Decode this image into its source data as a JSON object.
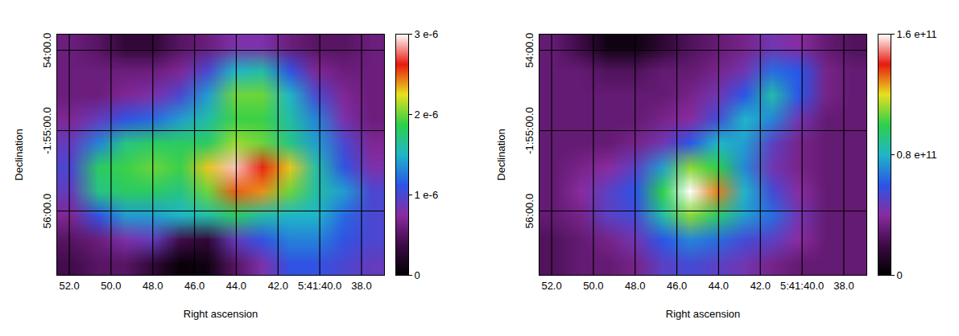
{
  "chart_data": [
    {
      "type": "heatmap",
      "xlabel": "Right ascension",
      "ylabel": "Declination",
      "xlim": [
        52.6,
        36.9
      ],
      "ylim": [
        56.8,
        53.8
      ],
      "xticks": [
        {
          "value": 52,
          "label": "52.0"
        },
        {
          "value": 50,
          "label": "50.0"
        },
        {
          "value": 48,
          "label": "48.0"
        },
        {
          "value": 46,
          "label": "46.0"
        },
        {
          "value": 44,
          "label": "44.0"
        },
        {
          "value": 42,
          "label": "42.0"
        },
        {
          "value": 40,
          "label": "5:41:40.0"
        },
        {
          "value": 38,
          "label": "38.0"
        }
      ],
      "yticks": [
        {
          "value": 54,
          "label": "54:00.0"
        },
        {
          "value": 55,
          "label": "-1:55:00.0"
        },
        {
          "value": 56,
          "label": "56:00.0"
        }
      ],
      "grid": true,
      "cells": [
        [
          6e-07,
          5e-07,
          3e-07,
          3e-07,
          5e-07,
          6e-07,
          8e-07,
          8e-07,
          6e-07,
          5e-07,
          5e-07,
          6e-07
        ],
        [
          6e-07,
          6e-07,
          6e-07,
          6e-07,
          7e-07,
          1e-06,
          1.5e-06,
          1.6e-06,
          1.1e-06,
          7e-07,
          6e-07,
          6e-07
        ],
        [
          6e-07,
          6e-07,
          7e-07,
          8e-07,
          1e-06,
          1.4e-06,
          2e-06,
          2e-06,
          1.5e-06,
          1e-06,
          7e-07,
          6e-07
        ],
        [
          7e-07,
          9e-07,
          1.1e-06,
          1.2e-06,
          1.4e-06,
          1.6e-06,
          1.9e-06,
          1.9e-06,
          1.6e-06,
          1.3e-06,
          8e-07,
          6e-07
        ],
        [
          9e-07,
          1.3e-06,
          1.7e-06,
          1.8e-06,
          1.8e-06,
          1.8e-06,
          2.1e-06,
          2e-06,
          1.7e-06,
          1.4e-06,
          1e-06,
          7e-07
        ],
        [
          1e-06,
          1.8e-06,
          1.9e-06,
          2e-06,
          1.9e-06,
          2.3e-06,
          2.9e-06,
          2.6e-06,
          2.3e-06,
          1.6e-06,
          1.1e-06,
          8e-07
        ],
        [
          9e-07,
          1.7e-06,
          1.8e-06,
          1.8e-06,
          1.7e-06,
          2e-06,
          2.5e-06,
          2.4e-06,
          2e-06,
          1.6e-06,
          1.4e-06,
          1e-06
        ],
        [
          7e-07,
          1.1e-06,
          1.4e-06,
          1.4e-06,
          1.5e-06,
          1.6e-06,
          1.8e-06,
          1.6e-06,
          1.5e-06,
          1.5e-06,
          1.2e-06,
          1e-06
        ],
        [
          5e-07,
          6e-07,
          8e-07,
          9e-07,
          4e-07,
          3e-07,
          9e-07,
          1.1e-06,
          1.3e-06,
          1.3e-06,
          1.1e-06,
          1e-06
        ],
        [
          4e-07,
          5e-07,
          5e-07,
          3e-07,
          5e-08,
          1e-07,
          5e-07,
          8e-07,
          1.1e-06,
          1.1e-06,
          1e-06,
          9e-07
        ]
      ],
      "colorbar_range": [
        0,
        3e-06
      ],
      "colorbar_ticks": [
        0,
        {
          "value": 1e-06,
          "label": "1 e-6"
        },
        {
          "value": 2e-06,
          "label": "2 e-6"
        },
        {
          "value": 3e-06,
          "label": "3 e-6"
        }
      ]
    },
    {
      "type": "heatmap",
      "xlabel": "Right ascension",
      "ylabel": "Declination",
      "xlim": [
        52.6,
        36.9
      ],
      "ylim": [
        56.8,
        53.8
      ],
      "xticks": [
        {
          "value": 52,
          "label": "52.0"
        },
        {
          "value": 50,
          "label": "50.0"
        },
        {
          "value": 48,
          "label": "48.0"
        },
        {
          "value": 46,
          "label": "46.0"
        },
        {
          "value": 44,
          "label": "44.0"
        },
        {
          "value": 42,
          "label": "42.0"
        },
        {
          "value": 40,
          "label": "5:41:40.0"
        },
        {
          "value": 38,
          "label": "38.0"
        }
      ],
      "yticks": [
        {
          "value": 54,
          "label": "54:00.0"
        },
        {
          "value": 55,
          "label": "-1:55:00.0"
        },
        {
          "value": 56,
          "label": "56:00.0"
        }
      ],
      "grid": true,
      "cells": [
        [
          30000000000.0,
          20000000000.0,
          5000000000.0,
          5000000000.0,
          15000000000.0,
          25000000000.0,
          30000000000.0,
          35000000000.0,
          45000000000.0,
          40000000000.0,
          30000000000.0,
          25000000000.0
        ],
        [
          30000000000.0,
          30000000000.0,
          25000000000.0,
          25000000000.0,
          30000000000.0,
          30000000000.0,
          35000000000.0,
          45000000000.0,
          65000000000.0,
          60000000000.0,
          35000000000.0,
          30000000000.0
        ],
        [
          30000000000.0,
          30000000000.0,
          30000000000.0,
          30000000000.0,
          30000000000.0,
          35000000000.0,
          45000000000.0,
          60000000000.0,
          85000000000.0,
          60000000000.0,
          35000000000.0,
          30000000000.0
        ],
        [
          30000000000.0,
          30000000000.0,
          30000000000.0,
          30000000000.0,
          35000000000.0,
          40000000000.0,
          55000000000.0,
          80000000000.0,
          70000000000.0,
          45000000000.0,
          30000000000.0,
          30000000000.0
        ],
        [
          30000000000.0,
          30000000000.0,
          30000000000.0,
          35000000000.0,
          45000000000.0,
          60000000000.0,
          80000000000.0,
          75000000000.0,
          50000000000.0,
          35000000000.0,
          30000000000.0,
          30000000000.0
        ],
        [
          30000000000.0,
          35000000000.0,
          40000000000.0,
          50000000000.0,
          75000000000.0,
          110000000000.0,
          100000000000.0,
          70000000000.0,
          45000000000.0,
          35000000000.0,
          30000000000.0,
          30000000000.0
        ],
        [
          30000000000.0,
          40000000000.0,
          50000000000.0,
          60000000000.0,
          100000000000.0,
          160000000000.0,
          130000000000.0,
          80000000000.0,
          55000000000.0,
          40000000000.0,
          30000000000.0,
          30000000000.0
        ],
        [
          30000000000.0,
          35000000000.0,
          50000000000.0,
          55000000000.0,
          85000000000.0,
          110000000000.0,
          95000000000.0,
          75000000000.0,
          65000000000.0,
          45000000000.0,
          30000000000.0,
          30000000000.0
        ],
        [
          25000000000.0,
          30000000000.0,
          35000000000.0,
          45000000000.0,
          60000000000.0,
          70000000000.0,
          65000000000.0,
          55000000000.0,
          50000000000.0,
          40000000000.0,
          30000000000.0,
          30000000000.0
        ],
        [
          25000000000.0,
          30000000000.0,
          30000000000.0,
          35000000000.0,
          50000000000.0,
          55000000000.0,
          50000000000.0,
          45000000000.0,
          35000000000.0,
          30000000000.0,
          30000000000.0,
          30000000000.0
        ]
      ],
      "colorbar_range": [
        0,
        160000000000.0
      ],
      "colorbar_ticks": [
        0,
        {
          "value": 80000000000.0,
          "label": "0.8 e+11"
        },
        {
          "value": 160000000000.0,
          "label": "1.6 e+11"
        }
      ]
    }
  ]
}
